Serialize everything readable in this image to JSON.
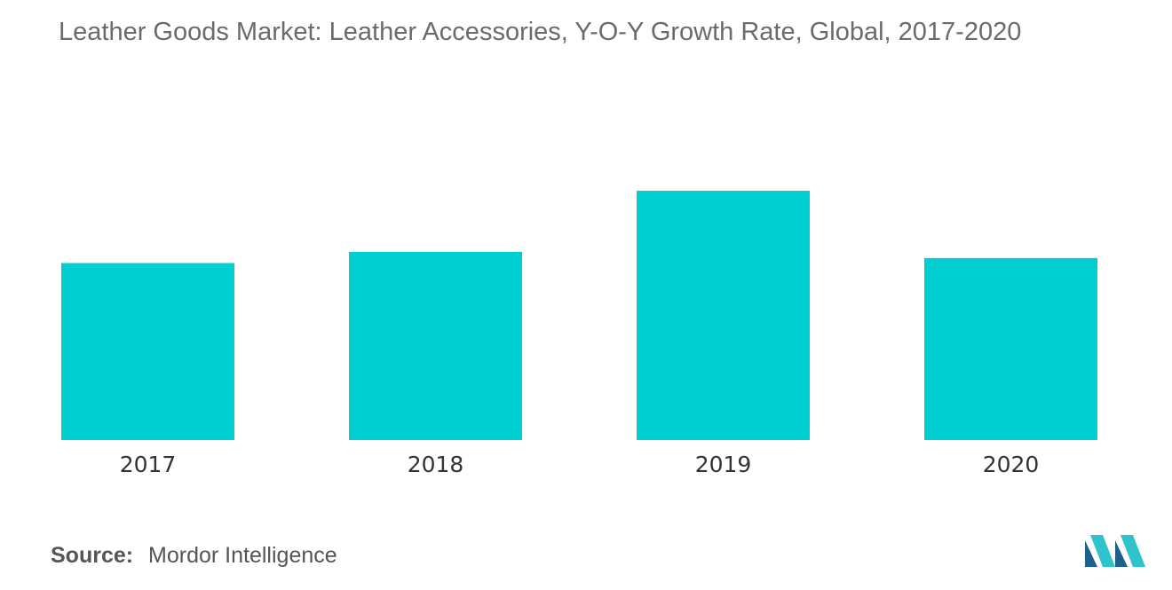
{
  "title": "Leather Goods Market: Leather Accessories, Y-O-Y Growth Rate,  Global, 2017-2020",
  "source": {
    "label": "Source:",
    "value": "Mordor Intelligence"
  },
  "colors": {
    "bar": "#00CED1",
    "logo_dark": "#1F5F8B",
    "logo_light": "#2EC4C9"
  },
  "chart_data": {
    "type": "bar",
    "title": "Leather Goods Market: Leather Accessories, Y-O-Y Growth Rate,  Global, 2017-2020",
    "categories": [
      "2017",
      "2018",
      "2019",
      "2020"
    ],
    "values": [
      71,
      75.5,
      100,
      73
    ],
    "xlabel": "",
    "ylabel": "",
    "ylim": [
      0,
      100
    ],
    "grid": false,
    "legend": "none"
  }
}
